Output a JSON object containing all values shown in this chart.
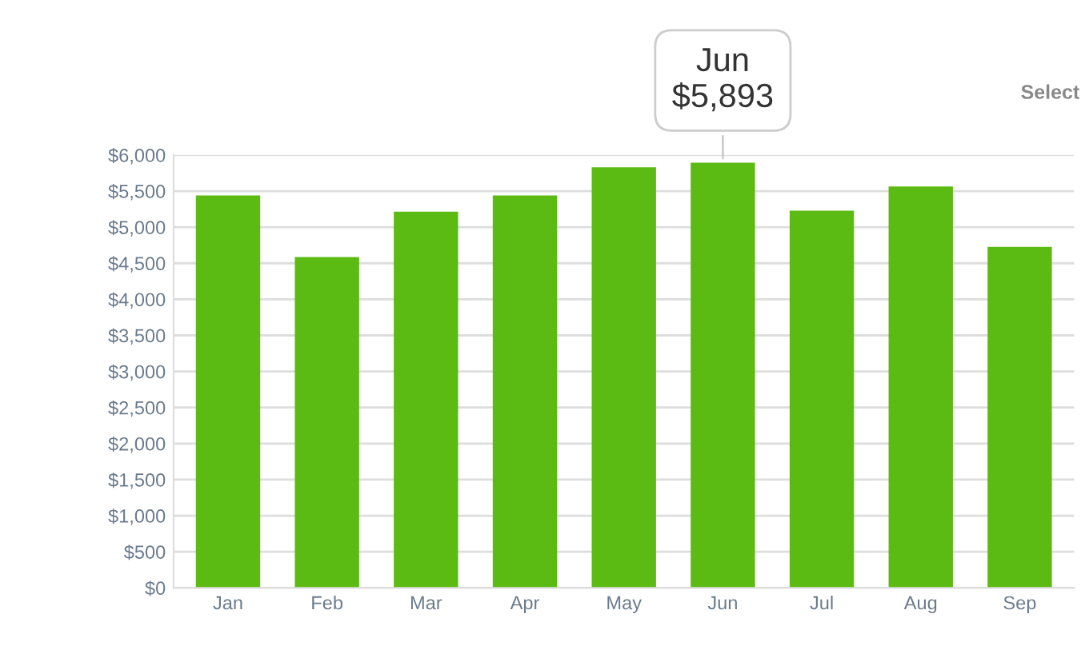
{
  "chart_data": {
    "type": "bar",
    "categories": [
      "Jan",
      "Feb",
      "Mar",
      "Apr",
      "May",
      "Jun",
      "Jul",
      "Aug",
      "Sep"
    ],
    "values": [
      5440,
      4585,
      5215,
      5440,
      5830,
      5893,
      5230,
      5563,
      4726
    ],
    "color": "#5cbb12",
    "ylim": [
      0,
      6000
    ],
    "yticks": [
      {
        "value": 0,
        "label": "$0"
      },
      {
        "value": 500,
        "label": "$500"
      },
      {
        "value": 1000,
        "label": "$1,000"
      },
      {
        "value": 1500,
        "label": "$1,500"
      },
      {
        "value": 2000,
        "label": "$2,000"
      },
      {
        "value": 2500,
        "label": "$2,500"
      },
      {
        "value": 3000,
        "label": "$3,000"
      },
      {
        "value": 3500,
        "label": "$3,500"
      },
      {
        "value": 4000,
        "label": "$4,000"
      },
      {
        "value": 4500,
        "label": "$4,500"
      },
      {
        "value": 5000,
        "label": "$5,000"
      },
      {
        "value": 5500,
        "label": "$5,500"
      },
      {
        "value": 6000,
        "label": "$6,000"
      }
    ],
    "grid": "y",
    "annotations": [
      {
        "text": "Jun\n$5,893",
        "x": "Jun",
        "y": 5893
      },
      "Select"
    ]
  }
}
